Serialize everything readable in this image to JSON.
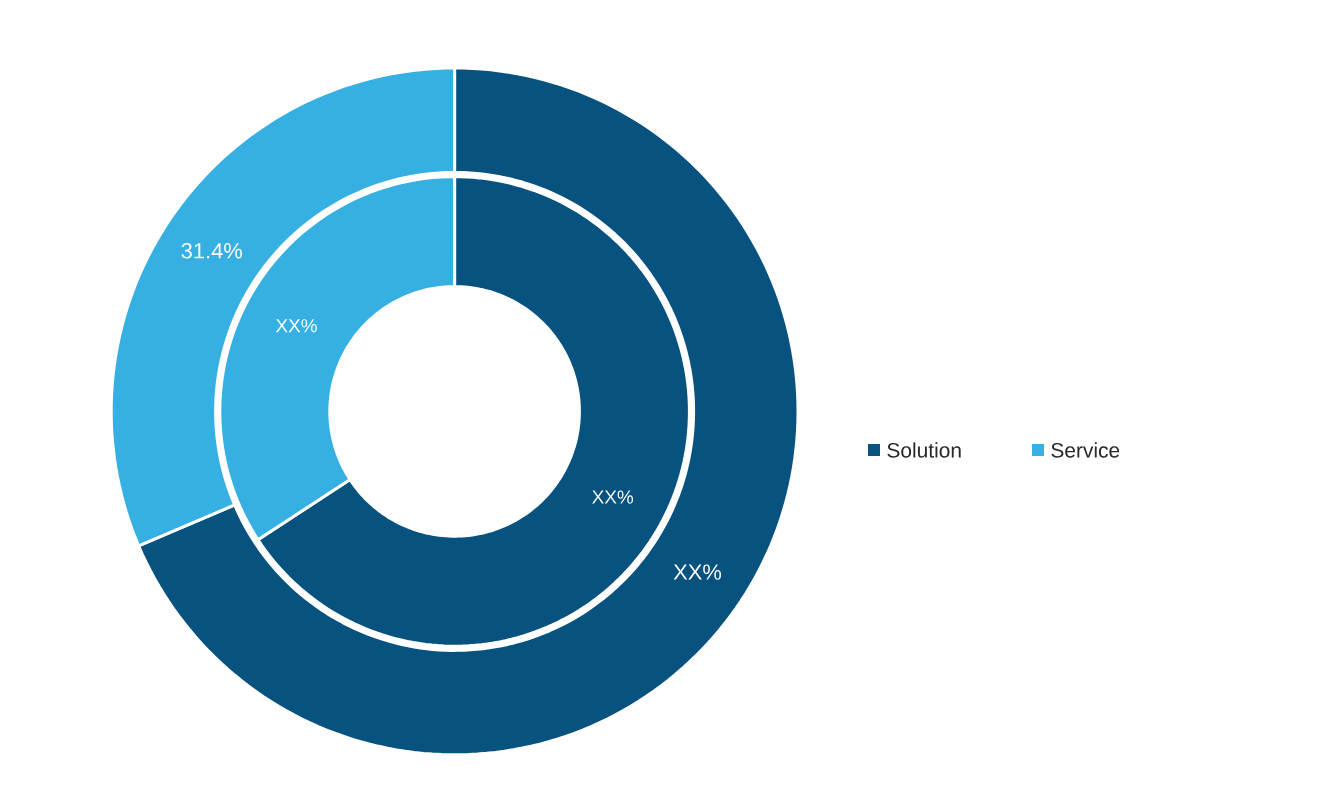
{
  "chart_data": {
    "type": "donut",
    "categories": [
      "Solution",
      "Service"
    ],
    "legend": "right",
    "series": [
      {
        "values": [
          68.6,
          31.4
        ],
        "colors": [
          "#08527f",
          "#36b0e2"
        ],
        "value_labels": [
          "XX%",
          "31.4%"
        ]
      },
      {
        "values": [
          65.8,
          34.2
        ],
        "colors": [
          "#08527f",
          "#36b0e2"
        ],
        "value_labels": [
          "XX%",
          "XX%"
        ]
      }
    ]
  }
}
